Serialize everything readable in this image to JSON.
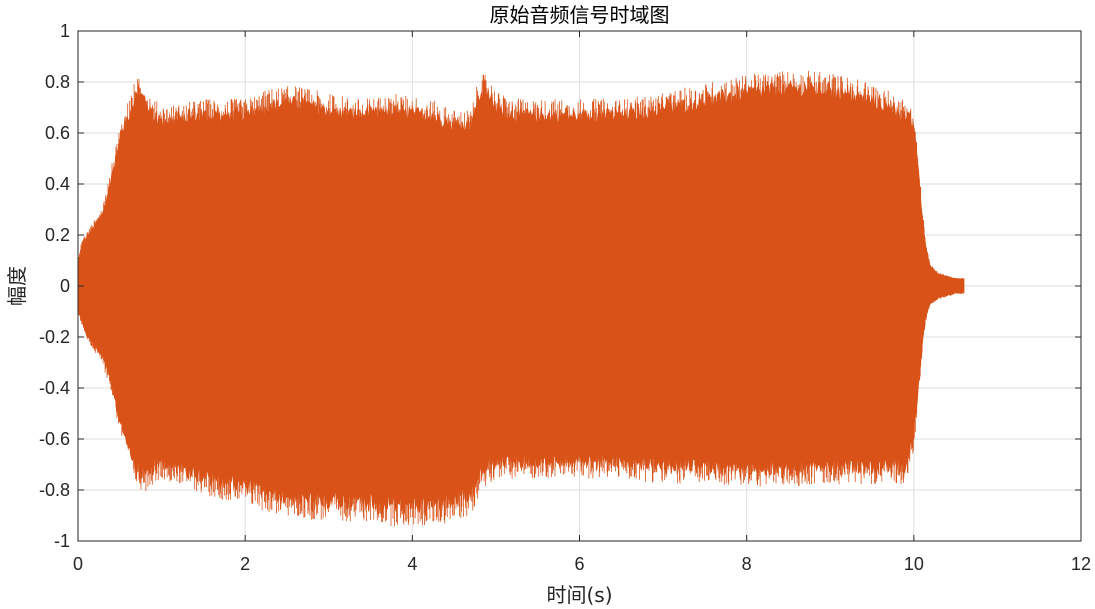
{
  "chart_data": {
    "type": "area",
    "title": "原始音频信号时域图",
    "xlabel": "时间(s)",
    "ylabel": "幅度",
    "xlim": [
      0,
      12
    ],
    "ylim": [
      -1,
      1
    ],
    "x_ticks": [
      0,
      2,
      4,
      6,
      8,
      10,
      12
    ],
    "y_ticks": [
      1,
      0.8,
      0.6,
      0.4,
      0.2,
      0,
      -0.2,
      -0.4,
      -0.6,
      -0.8,
      -1
    ],
    "x_tick_labels": [
      "0",
      "2",
      "4",
      "6",
      "8",
      "10",
      "12"
    ],
    "y_tick_labels": [
      "1",
      "0.8",
      "0.6",
      "0.4",
      "0.2",
      "0",
      "-0.2",
      "-0.4",
      "-0.6",
      "-0.8",
      "-1"
    ],
    "grid": true,
    "series_color": "#D95319",
    "series": [
      {
        "x": [
          0,
          0.05,
          0.1,
          0.2,
          0.3,
          0.4,
          0.5,
          0.6,
          0.7,
          0.8,
          0.9,
          1.0,
          1.2,
          1.5,
          2.0,
          2.3,
          2.6,
          3.0,
          3.4,
          3.8,
          4.2,
          4.5,
          4.7,
          4.8,
          4.9,
          5.0,
          5.2,
          5.5,
          6.0,
          6.5,
          7.0,
          7.5,
          8.0,
          8.5,
          9.0,
          9.5,
          9.9,
          10.0,
          10.05,
          10.1,
          10.15,
          10.2,
          10.3,
          10.4,
          10.5,
          10.6
        ],
        "upper": [
          0.1,
          0.18,
          0.2,
          0.25,
          0.3,
          0.45,
          0.6,
          0.7,
          0.78,
          0.77,
          0.7,
          0.68,
          0.68,
          0.7,
          0.7,
          0.74,
          0.75,
          0.72,
          0.7,
          0.72,
          0.7,
          0.66,
          0.66,
          0.78,
          0.8,
          0.73,
          0.7,
          0.7,
          0.7,
          0.7,
          0.72,
          0.76,
          0.79,
          0.81,
          0.8,
          0.76,
          0.7,
          0.66,
          0.5,
          0.3,
          0.15,
          0.08,
          0.05,
          0.04,
          0.03,
          0.03
        ],
        "lower": [
          -0.1,
          -0.15,
          -0.2,
          -0.25,
          -0.3,
          -0.4,
          -0.55,
          -0.65,
          -0.75,
          -0.77,
          -0.74,
          -0.72,
          -0.74,
          -0.78,
          -0.82,
          -0.85,
          -0.87,
          -0.88,
          -0.88,
          -0.9,
          -0.9,
          -0.88,
          -0.86,
          -0.78,
          -0.74,
          -0.72,
          -0.72,
          -0.72,
          -0.72,
          -0.72,
          -0.74,
          -0.74,
          -0.75,
          -0.75,
          -0.74,
          -0.74,
          -0.74,
          -0.62,
          -0.45,
          -0.25,
          -0.12,
          -0.07,
          -0.05,
          -0.04,
          -0.03,
          -0.03
        ]
      }
    ]
  }
}
